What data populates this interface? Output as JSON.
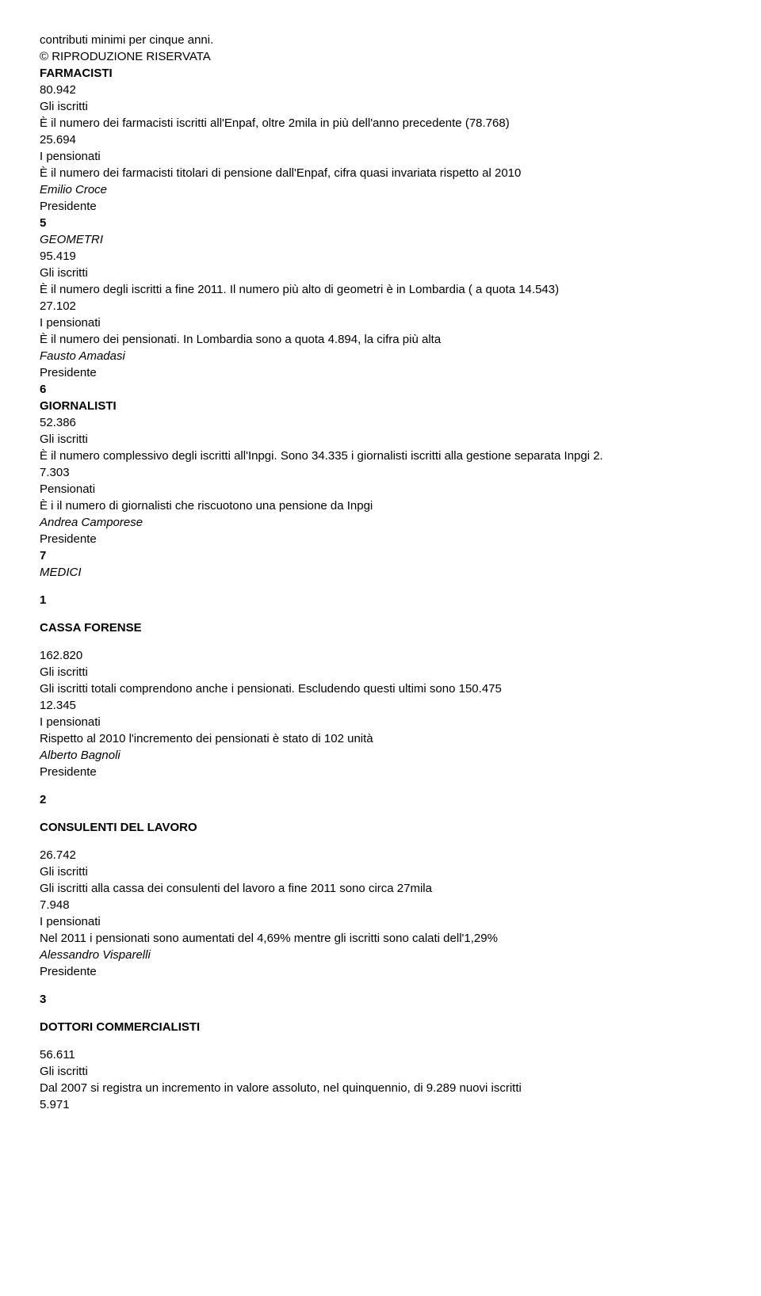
{
  "intro": {
    "line1": "contributi minimi per cinque anni.",
    "line2": "© RIPRODUZIONE RISERVATA"
  },
  "farmacisti": {
    "title": "FARMACISTI",
    "num1": "80.942",
    "label1": "Gli iscritti",
    "desc1": "È il numero dei farmacisti iscritti all'Enpaf, oltre 2mila in più dell'anno precedente (78.768)",
    "num2": "25.694",
    "label2": "I pensionati",
    "desc2": "È il numero dei farmacisti titolari di pensione dall'Enpaf, cifra quasi invariata rispetto al 2010",
    "person": "Emilio Croce",
    "role": "Presidente",
    "sec": "5"
  },
  "geometri": {
    "title": "GEOMETRI",
    "num1": "95.419",
    "label1": "Gli iscritti",
    "desc1": "È il numero degli iscritti a fine 2011. Il numero più alto di geometri è in Lombardia ( a quota 14.543)",
    "num2": "27.102",
    "label2": "I pensionati",
    "desc2": "È il numero dei pensionati. In Lombardia sono a quota 4.894, la cifra più alta",
    "person": "Fausto Amadasi",
    "role": "Presidente",
    "sec": "6"
  },
  "giornalisti": {
    "title": "GIORNALISTI",
    "num1": "52.386",
    "label1": "Gli iscritti",
    "desc1": "È il numero complessivo degli iscritti all'Inpgi. Sono 34.335 i giornalisti iscritti alla gestione separata Inpgi 2.",
    "num2": "7.303",
    "label2": "Pensionati",
    "desc2": "È i il numero di giornalisti che riscuotono una pensione da Inpgi",
    "person": "Andrea Camporese",
    "role": "Presidente",
    "sec": "7"
  },
  "medici": {
    "title": "MEDICI"
  },
  "forense": {
    "secnum": "1",
    "title": "CASSA FORENSE",
    "num1": "162.820",
    "label1": "Gli iscritti",
    "desc1": "Gli iscritti totali comprendono anche i pensionati. Escludendo questi ultimi sono 150.475",
    "num2": "12.345",
    "label2": "I pensionati",
    "desc2": "Rispetto al 2010 l'incremento dei pensionati è stato di 102 unità",
    "person": "Alberto Bagnoli",
    "role": "Presidente"
  },
  "consulenti": {
    "secnum": "2",
    "title": "CONSULENTI DEL LAVORO",
    "num1": "26.742",
    "label1": "Gli iscritti",
    "desc1": "Gli iscritti alla cassa dei consulenti del lavoro a fine 2011 sono circa 27mila",
    "num2": "7.948",
    "label2": "I pensionati",
    "desc2": "Nel 2011 i pensionati sono aumentati del 4,69% mentre gli iscritti sono calati dell'1,29%",
    "person": "Alessandro Visparelli",
    "role": "Presidente"
  },
  "commercialisti": {
    "secnum": "3",
    "title": "DOTTORI COMMERCIALISTI",
    "num1": "56.611",
    "label1": "Gli iscritti",
    "desc1": "Dal 2007 si registra un incremento in valore assoluto, nel quinquennio, di 9.289 nuovi iscritti",
    "num2": "5.971"
  }
}
